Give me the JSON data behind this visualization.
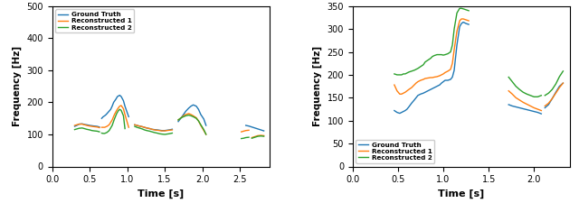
{
  "plot1": {
    "xlabel": "Time [s]",
    "ylabel": "Frequency [Hz]",
    "xlim": [
      0.0,
      2.9
    ],
    "ylim": [
      0,
      500
    ],
    "yticks": [
      0,
      100,
      200,
      300,
      400,
      500
    ],
    "xticks": [
      0.0,
      0.5,
      1.0,
      1.5,
      2.0,
      2.5
    ],
    "legend_loc": "upper left",
    "colors": {
      "ground_truth": "#1f77b4",
      "reconstructed1": "#ff7f0e",
      "reconstructed2": "#2ca02c"
    },
    "labels": [
      "Ground Truth",
      "Reconstructed 1",
      "Reconstructed 2"
    ],
    "keys": [
      "ground_truth",
      "reconstructed1",
      "reconstructed2"
    ],
    "segments": {
      "ground_truth": [
        {
          "t": [
            0.3,
            0.33,
            0.36,
            0.4,
            0.43,
            0.46,
            0.5,
            0.53,
            0.56,
            0.6,
            0.63
          ],
          "f": [
            125,
            128,
            132,
            133,
            131,
            130,
            128,
            127,
            126,
            125,
            123
          ]
        },
        {
          "t": [
            0.66,
            0.68,
            0.7,
            0.72,
            0.75,
            0.78,
            0.8,
            0.82,
            0.85,
            0.87,
            0.9,
            0.92,
            0.95,
            0.97,
            1.0,
            1.02
          ],
          "f": [
            150,
            155,
            158,
            162,
            170,
            178,
            188,
            200,
            210,
            218,
            222,
            218,
            205,
            188,
            168,
            155
          ]
        },
        {
          "t": [
            1.1,
            1.13,
            1.16,
            1.2,
            1.23,
            1.26,
            1.3,
            1.33,
            1.36,
            1.4,
            1.43,
            1.46,
            1.5,
            1.53,
            1.56,
            1.6
          ],
          "f": [
            130,
            128,
            126,
            124,
            122,
            120,
            118,
            116,
            115,
            114,
            113,
            112,
            112,
            113,
            114,
            116
          ]
        },
        {
          "t": [
            1.68,
            1.72,
            1.75,
            1.78,
            1.82,
            1.85,
            1.88,
            1.92,
            1.95,
            1.98,
            2.02,
            2.05
          ],
          "f": [
            140,
            152,
            162,
            172,
            182,
            188,
            192,
            188,
            178,
            162,
            148,
            128
          ]
        },
        {
          "t": [
            2.58,
            2.62,
            2.66,
            2.7,
            2.74,
            2.78,
            2.82
          ],
          "f": [
            128,
            126,
            123,
            120,
            117,
            114,
            111
          ]
        }
      ],
      "reconstructed1": [
        {
          "t": [
            0.3,
            0.33,
            0.36,
            0.4,
            0.43,
            0.46,
            0.5,
            0.53,
            0.56,
            0.6,
            0.63
          ],
          "f": [
            128,
            130,
            132,
            132,
            130,
            128,
            126,
            125,
            124,
            123,
            121
          ]
        },
        {
          "t": [
            0.66,
            0.68,
            0.7,
            0.73,
            0.76,
            0.8,
            0.83,
            0.86,
            0.88,
            0.9,
            0.92,
            0.95,
            0.97,
            1.0,
            1.02
          ],
          "f": [
            122,
            122,
            122,
            125,
            130,
            145,
            162,
            175,
            182,
            188,
            190,
            180,
            162,
            138,
            122
          ]
        },
        {
          "t": [
            1.1,
            1.13,
            1.16,
            1.2,
            1.23,
            1.26,
            1.3,
            1.33,
            1.36,
            1.4,
            1.43,
            1.46,
            1.5,
            1.53,
            1.56,
            1.6
          ],
          "f": [
            130,
            128,
            126,
            124,
            122,
            120,
            118,
            116,
            114,
            113,
            112,
            111,
            111,
            112,
            113,
            114
          ]
        },
        {
          "t": [
            1.68,
            1.72,
            1.75,
            1.78,
            1.82,
            1.85,
            1.88,
            1.92,
            1.95,
            1.98,
            2.02,
            2.05
          ],
          "f": [
            145,
            152,
            158,
            162,
            165,
            162,
            158,
            152,
            142,
            128,
            112,
            100
          ]
        },
        {
          "t": [
            2.52,
            2.55,
            2.58,
            2.62
          ],
          "f": [
            108,
            110,
            112,
            113
          ]
        },
        {
          "t": [
            2.66,
            2.7,
            2.74,
            2.78,
            2.82
          ],
          "f": [
            90,
            93,
            96,
            97,
            96
          ]
        }
      ],
      "reconstructed2": [
        {
          "t": [
            0.3,
            0.33,
            0.36,
            0.4,
            0.43,
            0.46,
            0.5,
            0.53,
            0.56,
            0.6,
            0.63
          ],
          "f": [
            115,
            117,
            119,
            120,
            118,
            116,
            114,
            112,
            111,
            110,
            108
          ]
        },
        {
          "t": [
            0.66,
            0.68,
            0.7,
            0.73,
            0.76,
            0.8,
            0.83,
            0.86,
            0.88,
            0.9,
            0.92,
            0.95,
            0.97
          ],
          "f": [
            104,
            103,
            103,
            106,
            112,
            128,
            148,
            165,
            173,
            178,
            175,
            158,
            118
          ]
        },
        {
          "t": [
            1.1,
            1.13,
            1.16,
            1.2,
            1.23,
            1.26,
            1.3,
            1.33,
            1.36,
            1.4,
            1.43,
            1.46,
            1.5,
            1.53,
            1.56,
            1.6
          ],
          "f": [
            125,
            122,
            120,
            117,
            114,
            112,
            110,
            108,
            106,
            104,
            102,
            101,
            100,
            101,
            102,
            104
          ]
        },
        {
          "t": [
            1.68,
            1.72,
            1.75,
            1.78,
            1.82,
            1.85,
            1.88,
            1.92,
            1.95,
            1.98,
            2.02,
            2.05
          ],
          "f": [
            145,
            152,
            155,
            158,
            160,
            158,
            155,
            150,
            142,
            130,
            115,
            100
          ]
        },
        {
          "t": [
            2.52,
            2.55,
            2.58,
            2.62
          ],
          "f": [
            87,
            88,
            90,
            91
          ]
        },
        {
          "t": [
            2.66,
            2.7,
            2.74,
            2.78,
            2.82
          ],
          "f": [
            88,
            91,
            94,
            95,
            94
          ]
        }
      ]
    }
  },
  "plot2": {
    "xlabel": "Time [s]",
    "ylabel": "Frequency [Hz]",
    "xlim": [
      0.0,
      2.4
    ],
    "ylim": [
      0,
      350
    ],
    "yticks": [
      0,
      50,
      100,
      150,
      200,
      250,
      300,
      350
    ],
    "xticks": [
      0.0,
      0.5,
      1.0,
      1.5,
      2.0
    ],
    "legend_loc": "lower left",
    "colors": {
      "ground_truth": "#1f77b4",
      "reconstructed1": "#ff7f0e",
      "reconstructed2": "#2ca02c"
    },
    "labels": [
      "Ground Truth",
      "Reconstructed 1",
      "Reconstructed 2"
    ],
    "keys": [
      "ground_truth",
      "reconstructed1",
      "reconstructed2"
    ],
    "segments": {
      "ground_truth": [
        {
          "t": [
            0.46,
            0.49,
            0.52,
            0.54,
            0.56,
            0.58,
            0.6,
            0.62,
            0.65,
            0.68,
            0.7,
            0.72,
            0.75,
            0.78,
            0.8,
            0.83,
            0.86,
            0.88,
            0.9,
            0.93,
            0.96,
            0.98,
            1.0,
            1.02,
            1.05,
            1.08,
            1.1,
            1.12,
            1.15,
            1.18,
            1.2,
            1.22,
            1.25,
            1.28
          ],
          "f": [
            122,
            118,
            116,
            118,
            120,
            122,
            125,
            130,
            138,
            145,
            150,
            155,
            158,
            160,
            162,
            165,
            168,
            170,
            172,
            175,
            178,
            182,
            185,
            188,
            188,
            190,
            195,
            210,
            265,
            305,
            312,
            315,
            312,
            310
          ]
        },
        {
          "t": [
            1.72,
            1.76,
            1.8,
            1.84,
            1.88,
            1.92,
            1.96,
            2.0,
            2.04,
            2.08
          ],
          "f": [
            135,
            132,
            130,
            128,
            126,
            124,
            122,
            120,
            118,
            115
          ]
        },
        {
          "t": [
            2.12,
            2.16,
            2.2,
            2.24,
            2.28,
            2.32
          ],
          "f": [
            128,
            135,
            148,
            162,
            175,
            182
          ]
        }
      ],
      "reconstructed1": [
        {
          "t": [
            0.46,
            0.49,
            0.52,
            0.54,
            0.56,
            0.58,
            0.6,
            0.62,
            0.65,
            0.68,
            0.7,
            0.72,
            0.75,
            0.78,
            0.8,
            0.83,
            0.86,
            0.88,
            0.9,
            0.93,
            0.96,
            0.98,
            1.0,
            1.02,
            1.05,
            1.08,
            1.1,
            1.12,
            1.15,
            1.18,
            1.2,
            1.22,
            1.25,
            1.28
          ],
          "f": [
            178,
            165,
            158,
            158,
            160,
            162,
            165,
            168,
            172,
            178,
            182,
            185,
            188,
            190,
            192,
            193,
            194,
            194,
            195,
            196,
            198,
            200,
            202,
            205,
            208,
            212,
            225,
            255,
            295,
            318,
            322,
            322,
            320,
            318
          ]
        },
        {
          "t": [
            1.72,
            1.76,
            1.8,
            1.84,
            1.88,
            1.92,
            1.96,
            2.0,
            2.04,
            2.08
          ],
          "f": [
            165,
            158,
            150,
            145,
            140,
            136,
            132,
            128,
            125,
            122
          ]
        },
        {
          "t": [
            2.12,
            2.16,
            2.2,
            2.24,
            2.28,
            2.32
          ],
          "f": [
            132,
            138,
            148,
            160,
            172,
            182
          ]
        }
      ],
      "reconstructed2": [
        {
          "t": [
            0.46,
            0.49,
            0.52,
            0.54,
            0.56,
            0.58,
            0.6,
            0.62,
            0.65,
            0.68,
            0.7,
            0.72,
            0.75,
            0.78,
            0.8,
            0.83,
            0.86,
            0.88,
            0.9,
            0.93,
            0.96,
            0.98,
            1.0,
            1.02,
            1.05,
            1.08,
            1.1,
            1.12,
            1.15,
            1.18,
            1.2,
            1.22,
            1.25,
            1.28
          ],
          "f": [
            202,
            200,
            200,
            200,
            202,
            202,
            204,
            206,
            208,
            210,
            212,
            214,
            218,
            222,
            228,
            232,
            236,
            240,
            242,
            244,
            244,
            244,
            243,
            244,
            246,
            250,
            265,
            300,
            335,
            345,
            345,
            344,
            342,
            340
          ]
        },
        {
          "t": [
            1.72,
            1.76,
            1.8,
            1.84,
            1.88,
            1.92,
            1.96,
            2.0,
            2.04,
            2.08
          ],
          "f": [
            195,
            185,
            175,
            168,
            162,
            158,
            155,
            152,
            152,
            155
          ]
        },
        {
          "t": [
            2.12,
            2.16,
            2.2,
            2.24,
            2.28,
            2.32
          ],
          "f": [
            155,
            160,
            168,
            180,
            196,
            208
          ]
        }
      ]
    }
  }
}
